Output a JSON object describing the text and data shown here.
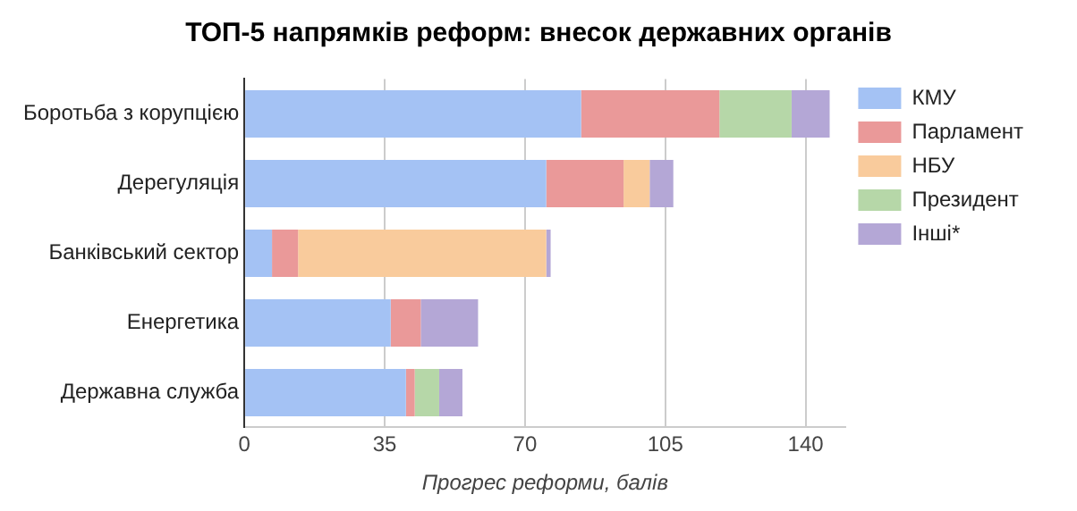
{
  "chart_data": {
    "type": "bar",
    "orientation": "horizontal",
    "stacked": true,
    "title": "ТОП-5 напрямків реформ: внесок державних органів",
    "xlabel": "Прогрес реформи, балів",
    "categories": [
      "Боротьба з корупцією",
      "Дерегуляція",
      "Банківський сектор",
      "Енергетика",
      "Державна служба"
    ],
    "series": [
      {
        "name": "КМУ",
        "color": "#a4c2f4",
        "values": [
          84,
          75.3,
          6.9,
          36.5,
          40.3
        ]
      },
      {
        "name": "Парламент",
        "color": "#ea9999",
        "values": [
          34.5,
          19.3,
          6.5,
          7.5,
          2.2
        ]
      },
      {
        "name": "НБУ",
        "color": "#f9cb9c",
        "values": [
          0,
          6.5,
          61.9,
          0,
          0
        ]
      },
      {
        "name": "Президент",
        "color": "#b6d7a8",
        "values": [
          18,
          0,
          0,
          0,
          6.1
        ]
      },
      {
        "name": "Інші*",
        "color": "#b4a7d6",
        "values": [
          9.5,
          5.9,
          1.1,
          14.3,
          5.8
        ]
      }
    ],
    "xlim": [
      0,
      150
    ],
    "xticks": [
      0,
      35,
      70,
      105,
      140
    ],
    "grid": "x",
    "legend": "right"
  }
}
